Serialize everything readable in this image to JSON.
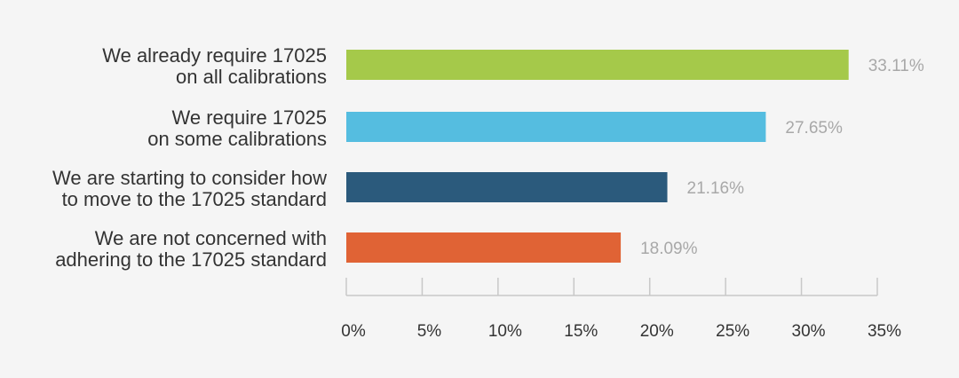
{
  "chart_data": {
    "type": "bar",
    "orientation": "horizontal",
    "categories": [
      [
        "We already require 17025",
        "on all calibrations"
      ],
      [
        "We require 17025",
        "on some calibrations"
      ],
      [
        "We are starting to consider how",
        "to move to the 17025 standard"
      ],
      [
        "We are not concerned with",
        "adhering to the 17025 standard"
      ]
    ],
    "values": [
      33.11,
      27.65,
      21.16,
      18.09
    ],
    "value_labels": [
      "33.11%",
      "27.65%",
      "21.16%",
      "18.09%"
    ],
    "colors": [
      "#a5c94a",
      "#55bde0",
      "#2b5a7c",
      "#e06335"
    ],
    "xlim": [
      0,
      35
    ],
    "ticks": [
      0,
      5,
      10,
      15,
      20,
      25,
      30,
      35
    ],
    "tick_labels": [
      "0%",
      "5%",
      "10%",
      "15%",
      "20%",
      "25%",
      "30%",
      "35%"
    ],
    "grid": false,
    "title": "",
    "xlabel": "",
    "ylabel": ""
  }
}
